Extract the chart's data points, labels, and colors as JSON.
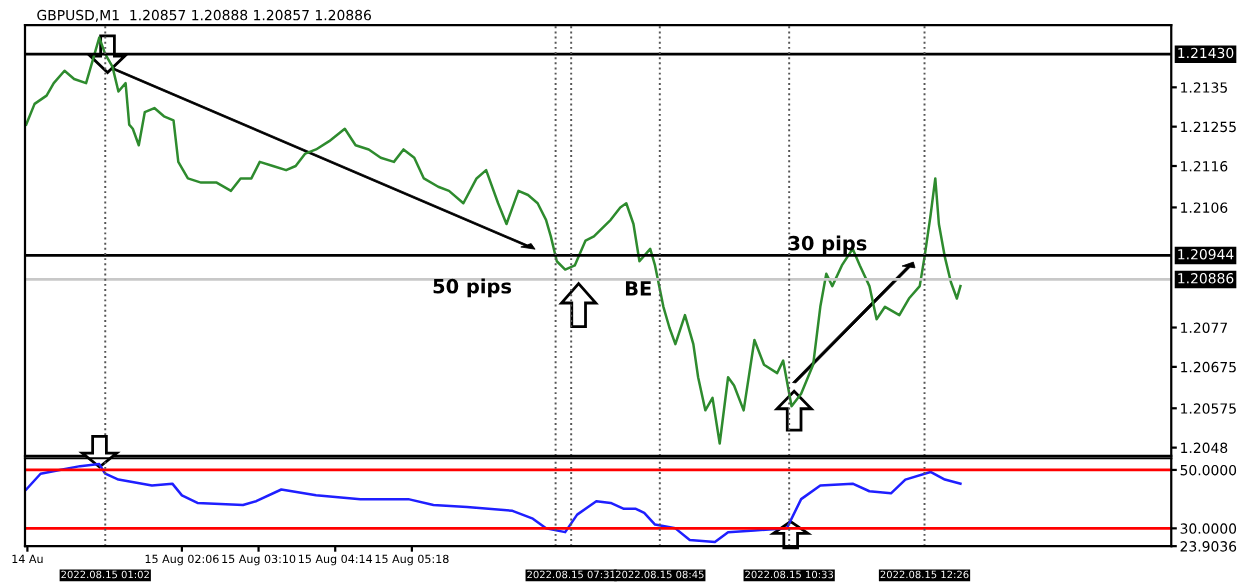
{
  "chart_data": [
    {
      "type": "line",
      "title": "GBPUSD,M1  1.20857 1.20888 1.20857 1.20886",
      "tick_labels": "y",
      "grid": false,
      "legend": false,
      "xlim": [
        "2022-08-14T23:55",
        "2022-08-15T15:52"
      ],
      "ylim": [
        1.2046,
        1.215
      ],
      "yticks": [
        1.2135,
        1.21255,
        1.2116,
        1.2106,
        1.2077,
        1.20675,
        1.20575,
        1.2048
      ],
      "series": [
        {
          "color": "#2e8b2e",
          "x": [
            "2022-08-14T23:56",
            "2022-08-15T00:03",
            "2022-08-15T00:13",
            "2022-08-15T00:19",
            "2022-08-15T00:28",
            "2022-08-15T00:36",
            "2022-08-15T00:46",
            "2022-08-15T00:52",
            "2022-08-15T00:57",
            "2022-08-15T01:02",
            "2022-08-15T01:08",
            "2022-08-15T01:13",
            "2022-08-15T01:19",
            "2022-08-15T01:22",
            "2022-08-15T01:25",
            "2022-08-15T01:30",
            "2022-08-15T01:35",
            "2022-08-15T01:43",
            "2022-08-15T01:51",
            "2022-08-15T01:59",
            "2022-08-15T02:03",
            "2022-08-15T02:11",
            "2022-08-15T02:22",
            "2022-08-15T02:35",
            "2022-08-15T02:47",
            "2022-08-15T02:55",
            "2022-08-15T03:04",
            "2022-08-15T03:11",
            "2022-08-15T03:22",
            "2022-08-15T03:33",
            "2022-08-15T03:41",
            "2022-08-15T03:49",
            "2022-08-15T03:58",
            "2022-08-15T04:09",
            "2022-08-15T04:22",
            "2022-08-15T04:31",
            "2022-08-15T04:42",
            "2022-08-15T04:52",
            "2022-08-15T05:03",
            "2022-08-15T05:11",
            "2022-08-15T05:20",
            "2022-08-15T05:28",
            "2022-08-15T05:40",
            "2022-08-15T05:49",
            "2022-08-15T06:01",
            "2022-08-15T06:12",
            "2022-08-15T06:20",
            "2022-08-15T06:30",
            "2022-08-15T06:37",
            "2022-08-15T06:47",
            "2022-08-15T06:55",
            "2022-08-15T07:03",
            "2022-08-15T07:10",
            "2022-08-15T07:14",
            "2022-08-15T07:19",
            "2022-08-15T07:26",
            "2022-08-15T07:34",
            "2022-08-15T07:43",
            "2022-08-15T07:50",
            "2022-08-15T08:04",
            "2022-08-15T08:12",
            "2022-08-15T08:17",
            "2022-08-15T08:23",
            "2022-08-15T08:28",
            "2022-08-15T08:37",
            "2022-08-15T08:41",
            "2022-08-15T08:48",
            "2022-08-15T08:53",
            "2022-08-15T08:58",
            "2022-08-15T09:06",
            "2022-08-15T09:13",
            "2022-08-15T09:17",
            "2022-08-15T09:23",
            "2022-08-15T09:29",
            "2022-08-15T09:35",
            "2022-08-15T09:42",
            "2022-08-15T09:47",
            "2022-08-15T09:55",
            "2022-08-15T10:04",
            "2022-08-15T10:12",
            "2022-08-15T10:23",
            "2022-08-15T10:28",
            "2022-08-15T10:35",
            "2022-08-15T10:43",
            "2022-08-15T10:53",
            "2022-08-15T10:59",
            "2022-08-15T11:04",
            "2022-08-15T11:09",
            "2022-08-15T11:17",
            "2022-08-15T11:26",
            "2022-08-15T11:32",
            "2022-08-15T11:40",
            "2022-08-15T11:46",
            "2022-08-15T11:53",
            "2022-08-15T12:05",
            "2022-08-15T12:13",
            "2022-08-15T12:22",
            "2022-08-15T12:26",
            "2022-08-15T12:31",
            "2022-08-15T12:35",
            "2022-08-15T12:38",
            "2022-08-15T12:43",
            "2022-08-15T12:48",
            "2022-08-15T12:53",
            "2022-08-15T12:56"
          ],
          "values": [
            1.2126,
            1.2131,
            1.2133,
            1.2136,
            1.2139,
            1.2137,
            1.2136,
            1.2142,
            1.2147,
            1.2143,
            1.214,
            1.2134,
            1.2136,
            1.2126,
            1.2125,
            1.2121,
            1.2129,
            1.213,
            1.2128,
            1.2127,
            1.2117,
            1.2113,
            1.2112,
            1.2112,
            1.211,
            1.2113,
            1.2113,
            1.2117,
            1.2116,
            1.2115,
            1.2116,
            1.2119,
            1.212,
            1.2122,
            1.2125,
            1.2121,
            1.212,
            1.2118,
            1.2117,
            1.212,
            1.2118,
            1.2113,
            1.2111,
            1.211,
            1.2107,
            1.2113,
            1.2115,
            1.2107,
            1.2102,
            1.211,
            1.2109,
            1.2107,
            1.2103,
            1.2099,
            1.2093,
            1.2091,
            1.2092,
            1.2098,
            1.2099,
            1.2103,
            1.2106,
            1.2107,
            1.2102,
            1.2093,
            1.2096,
            1.2092,
            1.2082,
            1.2077,
            1.2073,
            1.208,
            1.2073,
            1.2065,
            1.2057,
            1.206,
            1.2049,
            1.2065,
            1.2063,
            1.2057,
            1.2074,
            1.2068,
            1.2066,
            1.2069,
            1.2058,
            1.2061,
            1.2068,
            1.2082,
            1.209,
            1.2087,
            1.2092,
            1.2096,
            1.2092,
            1.2087,
            1.2079,
            1.2082,
            1.208,
            1.2084,
            1.2087,
            1.2094,
            1.2104,
            1.2113,
            1.2102,
            1.2094,
            1.2088,
            1.2084,
            1.2087
          ]
        }
      ],
      "ref_lines": [
        {
          "axis": "y",
          "value": 1.2143,
          "label": "1.21430",
          "color": "#000000",
          "line_style": "solid"
        },
        {
          "axis": "y",
          "value": 1.20944,
          "label": "1.20944",
          "color": "#000000",
          "line_style": "solid"
        },
        {
          "axis": "y",
          "value": 1.20886,
          "label": "1.20886",
          "color": "#c8c8c8",
          "line_style": "solid"
        },
        {
          "axis": "x",
          "value": "2022-08-15T01:02",
          "color": "#555555",
          "line_style": "dotted"
        },
        {
          "axis": "x",
          "value": "2022-08-15T07:18",
          "color": "#555555",
          "line_style": "dotted"
        },
        {
          "axis": "x",
          "value": "2022-08-15T07:31",
          "color": "#555555",
          "line_style": "dotted"
        },
        {
          "axis": "x",
          "value": "2022-08-15T08:45",
          "color": "#555555",
          "line_style": "dotted"
        },
        {
          "axis": "x",
          "value": "2022-08-15T10:33",
          "color": "#555555",
          "line_style": "dotted"
        },
        {
          "axis": "x",
          "value": "2022-08-15T12:26",
          "color": "#555555",
          "line_style": "dotted"
        }
      ],
      "annotations": [
        "50 pips",
        "BE",
        "30 pips"
      ]
    },
    {
      "type": "line",
      "grid": false,
      "legend": false,
      "xlim": [
        "2022-08-14T23:55",
        "2022-08-15T15:52"
      ],
      "ylim": [
        23.9036,
        54
      ],
      "xticks": [
        {
          "value": "2022-08-14T23:57",
          "label": "14 Au"
        },
        {
          "value": "2022-08-15T02:06",
          "label": "15 Aug 02:06"
        },
        {
          "value": "2022-08-15T03:10",
          "label": "15 Aug 03:10"
        },
        {
          "value": "2022-08-15T04:14",
          "label": "15 Aug 04:14"
        },
        {
          "value": "2022-08-15T05:18",
          "label": "15 Aug 05:18"
        }
      ],
      "yticks": [
        {
          "value": 50,
          "label": "50.0000"
        },
        {
          "value": 30,
          "label": "30.0000"
        },
        {
          "value": 23.9036,
          "label": "23.9036"
        }
      ],
      "series": [
        {
          "color": "#1f1fff",
          "x": [
            "2022-08-14T23:56",
            "2022-08-15T00:08",
            "2022-08-15T00:24",
            "2022-08-15T00:41",
            "2022-08-15T00:57",
            "2022-08-15T01:02",
            "2022-08-15T01:13",
            "2022-08-15T01:41",
            "2022-08-15T01:58",
            "2022-08-15T02:06",
            "2022-08-15T02:19",
            "2022-08-15T02:57",
            "2022-08-15T03:08",
            "2022-08-15T03:29",
            "2022-08-15T03:58",
            "2022-08-15T04:35",
            "2022-08-15T05:15",
            "2022-08-15T05:36",
            "2022-08-15T06:04",
            "2022-08-15T06:42",
            "2022-08-15T06:59",
            "2022-08-15T07:10",
            "2022-08-15T07:26",
            "2022-08-15T07:36",
            "2022-08-15T07:52",
            "2022-08-15T08:04",
            "2022-08-15T08:15",
            "2022-08-15T08:25",
            "2022-08-15T08:32",
            "2022-08-15T08:41",
            "2022-08-15T08:58",
            "2022-08-15T09:10",
            "2022-08-15T09:31",
            "2022-08-15T09:42",
            "2022-08-15T10:04",
            "2022-08-15T10:31",
            "2022-08-15T10:43",
            "2022-08-15T10:59",
            "2022-08-15T11:26",
            "2022-08-15T11:40",
            "2022-08-15T11:58",
            "2022-08-15T12:10",
            "2022-08-15T12:31",
            "2022-08-15T12:43",
            "2022-08-15T12:56"
          ],
          "values": [
            43.3,
            48.7,
            50,
            51.3,
            52,
            48.7,
            46.7,
            44.7,
            45.3,
            41.3,
            38.7,
            38,
            39.3,
            43.3,
            41.3,
            40,
            40,
            38,
            37.3,
            36,
            33.3,
            30,
            28.7,
            34.7,
            39.3,
            38.7,
            36.7,
            36.7,
            35.3,
            31.3,
            30,
            26,
            25.3,
            28.7,
            29.3,
            30,
            40,
            44.7,
            45.3,
            42.7,
            42,
            46.7,
            49.3,
            46.7,
            45.3
          ]
        }
      ],
      "ref_lines": [
        {
          "axis": "y",
          "value": 50,
          "color": "#ff0000",
          "line_style": "solid"
        },
        {
          "axis": "y",
          "value": 30,
          "color": "#ff0000",
          "line_style": "solid"
        },
        {
          "axis": "x",
          "value": "2022-08-15T01:02",
          "label": "2022.08.15 01:02",
          "color": "#555555",
          "line_style": "dotted"
        },
        {
          "axis": "x",
          "value": "2022-08-15T07:18",
          "color": "#555555",
          "line_style": "dotted"
        },
        {
          "axis": "x",
          "value": "2022-08-15T07:31",
          "label": "2022.08.15 07:31",
          "color": "#555555",
          "line_style": "dotted"
        },
        {
          "axis": "x",
          "value": "2022-08-15T08:45",
          "label": "2022.08.15 08:45",
          "color": "#555555",
          "line_style": "dotted"
        },
        {
          "axis": "x",
          "value": "2022-08-15T10:33",
          "label": "2022.08.15 10:33",
          "color": "#555555",
          "line_style": "dotted"
        },
        {
          "axis": "x",
          "value": "2022-08-15T12:26",
          "label": "2022.08.15 12:26",
          "color": "#555555",
          "line_style": "dotted"
        }
      ]
    }
  ]
}
